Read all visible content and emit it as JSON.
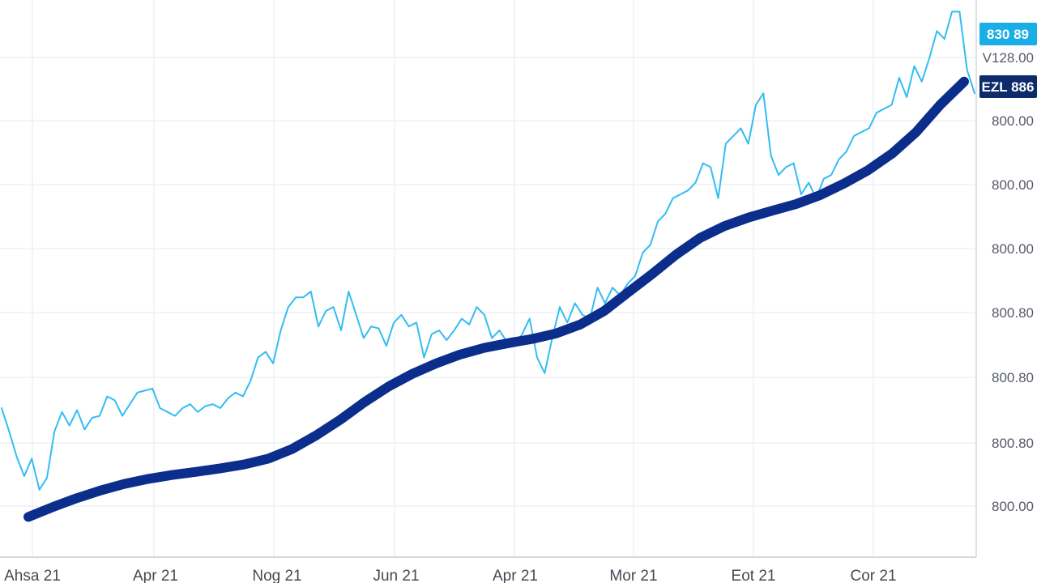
{
  "chart_data": {
    "type": "line",
    "grid": true,
    "x_ticks": [
      "Ahsa 21",
      "Apr 21",
      "Nog 21",
      "Jun 21",
      "Apr 21",
      "Mor 21",
      "Eot 21",
      "Cor 21"
    ],
    "y_ticks": [
      "800.00",
      "800.80",
      "800.80",
      "800.80",
      "800.00",
      "800.00",
      "800.00",
      "V128.00"
    ],
    "series": [
      {
        "color": "#33bdf2",
        "values": [
          0.3,
          0.24,
          0.175,
          0.125,
          0.17,
          0.09,
          0.12,
          0.24,
          0.29,
          0.255,
          0.295,
          0.245,
          0.275,
          0.28,
          0.33,
          0.32,
          0.28,
          0.31,
          0.34,
          0.345,
          0.35,
          0.3,
          0.29,
          0.28,
          0.3,
          0.31,
          0.29,
          0.305,
          0.31,
          0.3,
          0.325,
          0.34,
          0.33,
          0.37,
          0.43,
          0.445,
          0.415,
          0.5,
          0.56,
          0.585,
          0.585,
          0.6,
          0.51,
          0.55,
          0.56,
          0.5,
          0.6,
          0.54,
          0.48,
          0.51,
          0.505,
          0.46,
          0.52,
          0.54,
          0.51,
          0.52,
          0.43,
          0.49,
          0.5,
          0.475,
          0.5,
          0.53,
          0.515,
          0.56,
          0.54,
          0.48,
          0.5,
          0.47,
          0.46,
          0.49,
          0.53,
          0.43,
          0.39,
          0.48,
          0.56,
          0.52,
          0.57,
          0.54,
          0.53,
          0.61,
          0.57,
          0.61,
          0.59,
          0.62,
          0.64,
          0.7,
          0.72,
          0.78,
          0.8,
          0.84,
          0.85,
          0.86,
          0.88,
          0.93,
          0.92,
          0.84,
          0.98,
          1.0,
          1.02,
          0.98,
          1.08,
          1.11,
          0.95,
          0.9,
          0.92,
          0.93,
          0.85,
          0.88,
          0.84,
          0.89,
          0.9,
          0.94,
          0.96,
          1.0,
          1.01,
          1.02,
          1.06,
          1.07,
          1.08,
          1.15,
          1.1,
          1.18,
          1.14,
          1.2,
          1.27,
          1.25,
          1.32,
          1.32,
          1.17,
          1.11
        ]
      },
      {
        "color": "#0b2e8c",
        "values": [
          0.02,
          0.045,
          0.068,
          0.088,
          0.105,
          0.118,
          0.128,
          0.136,
          0.145,
          0.155,
          0.17,
          0.195,
          0.23,
          0.27,
          0.315,
          0.355,
          0.388,
          0.415,
          0.438,
          0.455,
          0.467,
          0.478,
          0.492,
          0.515,
          0.55,
          0.598,
          0.645,
          0.695,
          0.738,
          0.768,
          0.79,
          0.808,
          0.825,
          0.848,
          0.878,
          0.912,
          0.955,
          1.01,
          1.08,
          1.14
        ]
      }
    ],
    "callouts": [
      {
        "text": "830 89",
        "bg": "#1aaee6",
        "color": "#ffffff"
      },
      {
        "text": "EZL 886",
        "bg": "#0d2a6b",
        "color": "#ffffff"
      }
    ]
  }
}
